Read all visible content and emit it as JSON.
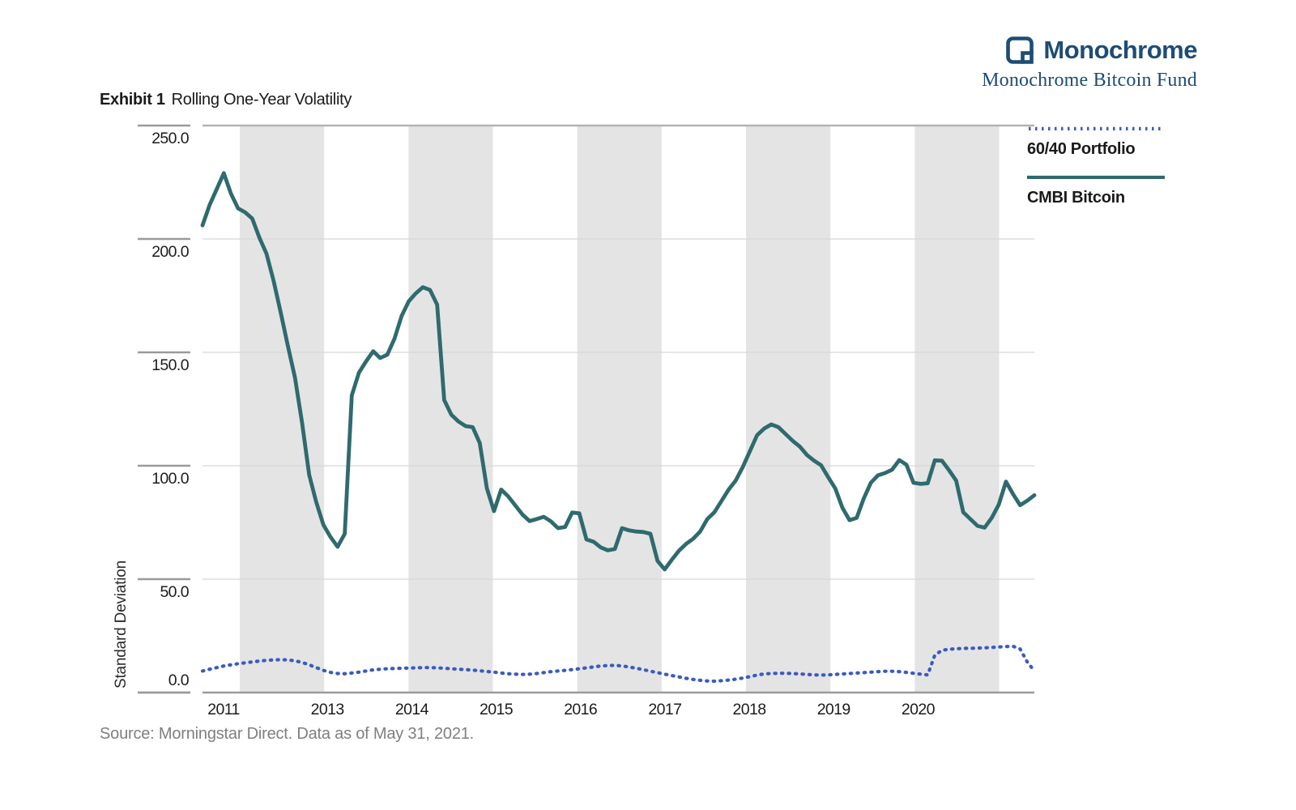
{
  "brand": {
    "name": "Monochrome",
    "subtitle": "Monochrome Bitcoin Fund",
    "color": "#1d4c74"
  },
  "title": {
    "exhibit": "Exhibit 1",
    "text": "Rolling One-Year Volatility"
  },
  "legend": [
    {
      "label": "60/40 Portfolio",
      "style": "dotted",
      "color": "#3c5bbf"
    },
    {
      "label": "CMBI Bitcoin",
      "style": "solid",
      "color": "#2f6b6e"
    }
  ],
  "source": "Source: Morningstar Direct.  Data as of May 31, 2021.",
  "chart_data": {
    "type": "line",
    "title": "Rolling One-Year Volatility",
    "ylabel": "Standard Deviation",
    "ylim": [
      0,
      250
    ],
    "y_ticks": [
      {
        "value": 250,
        "label": "250.0"
      },
      {
        "value": 200,
        "label": "200.0"
      },
      {
        "value": 150,
        "label": "150.0"
      },
      {
        "value": 100,
        "label": "100.0"
      },
      {
        "value": 50,
        "label": "50.0"
      },
      {
        "value": 0,
        "label": "0.0"
      }
    ],
    "x_start": "2011-08",
    "x_end": "2021-05",
    "frequency": "monthly",
    "x_year_labels": [
      "2011",
      "2013",
      "2014",
      "2015",
      "2016",
      "2017",
      "2018",
      "2019",
      "2020"
    ],
    "shaded_year_bands": [
      2012,
      2014,
      2016,
      2018,
      2020
    ],
    "grid": true,
    "legend_position": "top-right",
    "series": [
      {
        "name": "60/40 Portfolio",
        "color": "#3c5bbf",
        "style": "dotted",
        "values": [
          9.5,
          10.3,
          11,
          11.7,
          12.2,
          12.7,
          13.1,
          13.5,
          13.9,
          14.2,
          14.4,
          14.5,
          14.4,
          14,
          13.3,
          12.2,
          11,
          9.8,
          8.9,
          8.4,
          8.3,
          8.6,
          9,
          9.5,
          10,
          10.3,
          10.5,
          10.6,
          10.7,
          10.8,
          10.9,
          11,
          11,
          10.9,
          10.7,
          10.5,
          10.3,
          10.1,
          9.9,
          9.6,
          9.3,
          9,
          8.6,
          8.3,
          8.1,
          8,
          8.1,
          8.4,
          8.8,
          9.2,
          9.5,
          9.8,
          10.1,
          10.5,
          10.9,
          11.3,
          11.7,
          11.9,
          12,
          11.7,
          11.3,
          10.7,
          10.1,
          9.4,
          8.8,
          8.1,
          7.5,
          6.9,
          6.3,
          5.8,
          5.4,
          5.1,
          5,
          5.2,
          5.5,
          5.9,
          6.4,
          7,
          7.7,
          8.2,
          8.4,
          8.5,
          8.5,
          8.4,
          8.2,
          8,
          7.8,
          7.7,
          7.8,
          8,
          8.2,
          8.4,
          8.6,
          8.8,
          9,
          9.2,
          9.4,
          9.4,
          9.2,
          8.9,
          8.5,
          8.1,
          7.8,
          16.5,
          18.6,
          19.1,
          19.3,
          19.5,
          19.5,
          19.6,
          19.7,
          19.9,
          20.1,
          20.3,
          20.4,
          19.2,
          13.5,
          9.5
        ]
      },
      {
        "name": "CMBI Bitcoin",
        "color": "#2f6b6e",
        "style": "solid",
        "values": [
          206,
          215,
          222,
          229,
          220,
          213.5,
          211.7,
          209,
          200.6,
          193.5,
          181.5,
          167.5,
          153,
          139,
          119,
          96,
          84,
          74,
          68.6,
          64.3,
          70,
          131,
          141,
          146,
          150.5,
          147.5,
          149,
          156,
          166,
          172.5,
          176,
          178.7,
          177.5,
          171,
          129,
          122.5,
          119.5,
          117.5,
          117,
          110,
          90,
          80,
          89.5,
          86.5,
          82.5,
          78.5,
          75.6,
          76.5,
          77.5,
          75.5,
          72.5,
          73,
          79.4,
          79,
          67.5,
          66.5,
          64,
          62.7,
          63.3,
          72.5,
          71.5,
          71,
          70.8,
          70,
          58,
          54.3,
          58.5,
          62.5,
          65.5,
          67.8,
          71,
          76.5,
          79.5,
          84.5,
          89.5,
          93.5,
          99.5,
          106.5,
          113.5,
          116.4,
          118.2,
          117,
          114,
          111,
          108.5,
          104.8,
          102.3,
          100.2,
          95,
          90,
          81.5,
          76,
          77,
          85.5,
          92.5,
          95.8,
          96.8,
          98.3,
          102.5,
          100.5,
          92.5,
          92,
          92.3,
          102.4,
          102.2,
          98,
          93.5,
          79.5,
          76.5,
          73.5,
          72.7,
          77,
          82.9,
          93,
          87.5,
          82.6,
          84.6,
          87
        ]
      }
    ]
  },
  "colors": {
    "band": "#e4e4e4",
    "gridline": "#d8d8d8",
    "axis": "#9a9a9a",
    "top_border": "#b3b3b3",
    "tick_text": "#1c1c1c",
    "source_text": "#7f7f7f"
  }
}
